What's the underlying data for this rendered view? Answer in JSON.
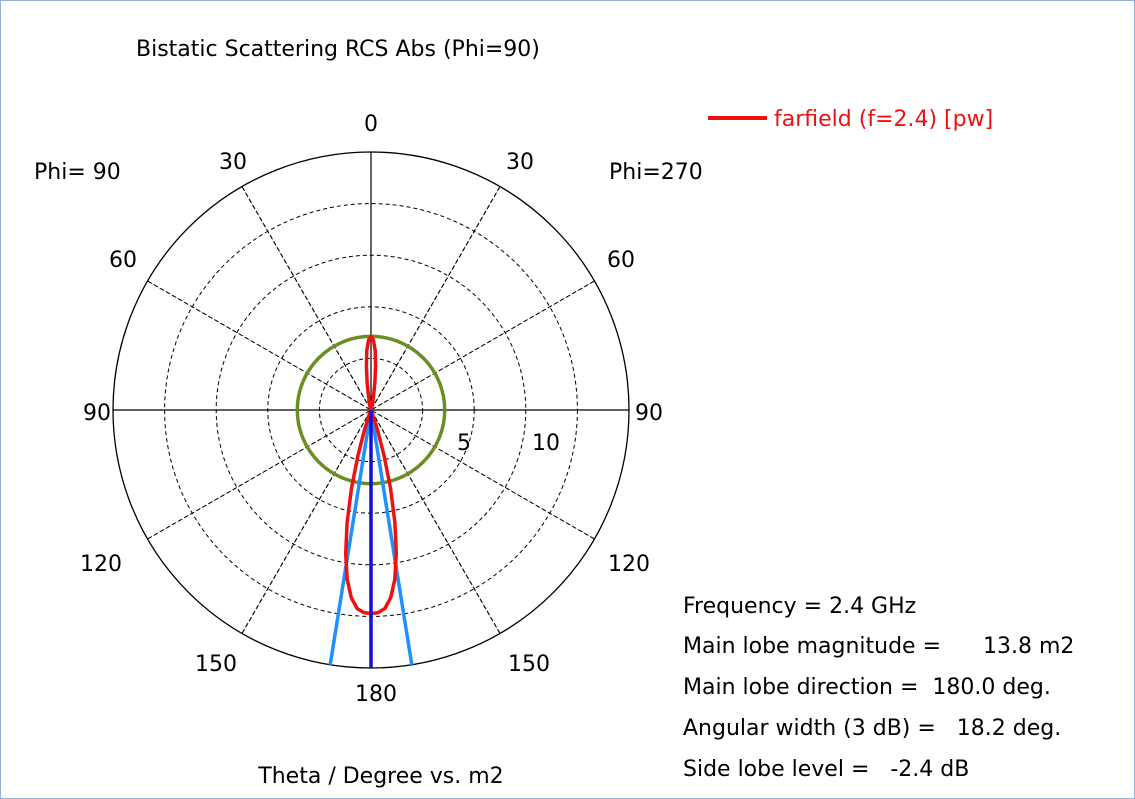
{
  "chart_data": {
    "type": "polar",
    "title": "Bistatic Scattering RCS Abs (Phi=90)",
    "xlabel": "Theta / Degree vs. m2",
    "phi_left_label": "Phi= 90",
    "phi_right_label": "Phi=270",
    "angle_tick_labels": {
      "0": "0",
      "30_left": "30",
      "30_right": "30",
      "60_left": "60",
      "60_right": "60",
      "90_left": "90",
      "90_right": "90",
      "120_left": "120",
      "120_right": "120",
      "150_left": "150",
      "150_right": "150",
      "180": "180"
    },
    "radial_ticks": [
      {
        "value": 5,
        "label": "5"
      },
      {
        "value": 10,
        "label": "10"
      }
    ],
    "radial_max": 17.5,
    "grid": true,
    "legend": {
      "position": "top-right",
      "entries": [
        {
          "name": "farfield (f=2.4) [pw]",
          "color": "#ee1111"
        }
      ]
    },
    "series": [
      {
        "name": "farfield (f=2.4) [pw]",
        "color": "#ee1111",
        "points": [
          {
            "theta": 0,
            "r": 5.0
          },
          {
            "theta": 2,
            "r": 4.75
          },
          {
            "theta": 4,
            "r": 4.05
          },
          {
            "theta": 6,
            "r": 3.0
          },
          {
            "theta": 8,
            "r": 1.9
          },
          {
            "theta": 10,
            "r": 1.0
          },
          {
            "theta": 12,
            "r": 0.45
          },
          {
            "theta": 14,
            "r": 0.6
          },
          {
            "theta": 16,
            "r": 0.3
          },
          {
            "theta": 20,
            "r": 0.1
          },
          {
            "theta": 30,
            "r": 0.05
          },
          {
            "theta": 60,
            "r": 0.05
          },
          {
            "theta": 90,
            "r": 0.05
          },
          {
            "theta": 120,
            "r": 0.05
          },
          {
            "theta": 150,
            "r": 0.1
          },
          {
            "theta": 160,
            "r": 0.5
          },
          {
            "theta": 162,
            "r": 1.5
          },
          {
            "theta": 164,
            "r": 3.2
          },
          {
            "theta": 166,
            "r": 5.5
          },
          {
            "theta": 168,
            "r": 7.8
          },
          {
            "theta": 170,
            "r": 9.9
          },
          {
            "theta": 172,
            "r": 11.6
          },
          {
            "theta": 174,
            "r": 12.8
          },
          {
            "theta": 176,
            "r": 13.5
          },
          {
            "theta": 178,
            "r": 13.75
          },
          {
            "theta": 180,
            "r": 13.8
          }
        ]
      }
    ],
    "reference_circle": {
      "r": 5.0,
      "color": "#6b8e23"
    },
    "main_lobe": {
      "direction_deg": 180.0,
      "magnitude": 13.8,
      "width_deg": 18.2,
      "color": "#1010d0",
      "width_color": "#1e90ff"
    }
  },
  "info": {
    "frequency": "Frequency = 2.4 GHz",
    "main_lobe_magnitude": "Main lobe magnitude =      13.8 m2",
    "main_lobe_direction": "Main lobe direction =  180.0 deg.",
    "angular_width": "Angular width (3 dB) =   18.2 deg.",
    "side_lobe_level": "Side lobe level =   -2.4 dB"
  }
}
